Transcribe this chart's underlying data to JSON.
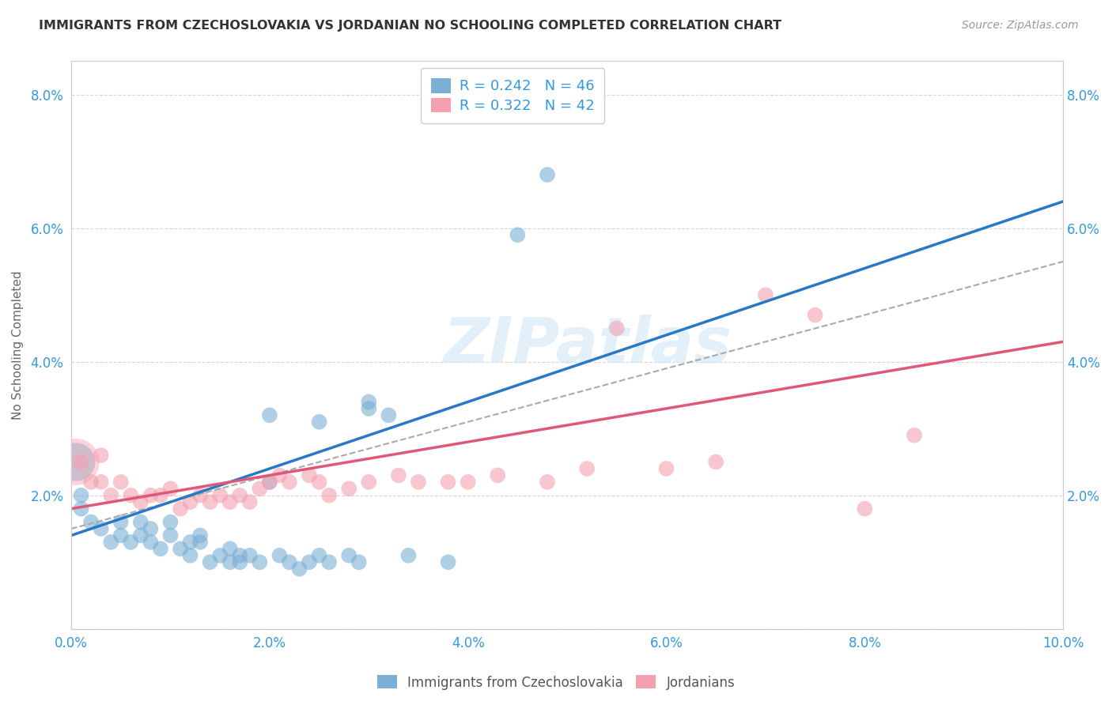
{
  "title": "IMMIGRANTS FROM CZECHOSLOVAKIA VS JORDANIAN NO SCHOOLING COMPLETED CORRELATION CHART",
  "source": "Source: ZipAtlas.com",
  "ylabel": "No Schooling Completed",
  "xlim": [
    0.0,
    0.1
  ],
  "ylim": [
    0.0,
    0.085
  ],
  "xticks": [
    0.0,
    0.02,
    0.04,
    0.06,
    0.08,
    0.1
  ],
  "yticks": [
    0.0,
    0.02,
    0.04,
    0.06,
    0.08
  ],
  "xticklabels": [
    "0.0%",
    "2.0%",
    "4.0%",
    "6.0%",
    "8.0%",
    "10.0%"
  ],
  "yticklabels": [
    "",
    "2.0%",
    "4.0%",
    "6.0%",
    "8.0%"
  ],
  "right_yticklabels": [
    "",
    "2.0%",
    "4.0%",
    "6.0%",
    "8.0%"
  ],
  "blue_color": "#7bafd4",
  "pink_color": "#f4a0b0",
  "blue_line_color": "#2878c8",
  "pink_line_color": "#e05878",
  "dashed_line_color": "#aaaaaa",
  "watermark": "ZIPatlas",
  "blue_scatter_x": [
    0.001,
    0.001,
    0.002,
    0.003,
    0.004,
    0.005,
    0.005,
    0.006,
    0.007,
    0.007,
    0.008,
    0.008,
    0.009,
    0.01,
    0.01,
    0.011,
    0.012,
    0.012,
    0.013,
    0.013,
    0.014,
    0.015,
    0.016,
    0.016,
    0.017,
    0.017,
    0.018,
    0.019,
    0.02,
    0.021,
    0.022,
    0.023,
    0.024,
    0.025,
    0.026,
    0.028,
    0.029,
    0.03,
    0.032,
    0.034,
    0.02,
    0.025,
    0.03,
    0.038,
    0.045,
    0.048
  ],
  "blue_scatter_y": [
    0.02,
    0.018,
    0.016,
    0.015,
    0.013,
    0.014,
    0.016,
    0.013,
    0.014,
    0.016,
    0.013,
    0.015,
    0.012,
    0.014,
    0.016,
    0.012,
    0.013,
    0.011,
    0.014,
    0.013,
    0.01,
    0.011,
    0.012,
    0.01,
    0.011,
    0.01,
    0.011,
    0.01,
    0.022,
    0.011,
    0.01,
    0.009,
    0.01,
    0.011,
    0.01,
    0.011,
    0.01,
    0.034,
    0.032,
    0.011,
    0.032,
    0.031,
    0.033,
    0.01,
    0.059,
    0.068
  ],
  "pink_scatter_x": [
    0.001,
    0.002,
    0.003,
    0.003,
    0.004,
    0.005,
    0.006,
    0.007,
    0.008,
    0.009,
    0.01,
    0.011,
    0.012,
    0.013,
    0.014,
    0.015,
    0.016,
    0.017,
    0.018,
    0.019,
    0.02,
    0.021,
    0.022,
    0.024,
    0.025,
    0.026,
    0.028,
    0.03,
    0.033,
    0.035,
    0.038,
    0.04,
    0.043,
    0.048,
    0.052,
    0.055,
    0.06,
    0.065,
    0.07,
    0.075,
    0.08,
    0.085
  ],
  "pink_scatter_y": [
    0.025,
    0.022,
    0.022,
    0.026,
    0.02,
    0.022,
    0.02,
    0.019,
    0.02,
    0.02,
    0.021,
    0.018,
    0.019,
    0.02,
    0.019,
    0.02,
    0.019,
    0.02,
    0.019,
    0.021,
    0.022,
    0.023,
    0.022,
    0.023,
    0.022,
    0.02,
    0.021,
    0.022,
    0.023,
    0.022,
    0.022,
    0.022,
    0.023,
    0.022,
    0.024,
    0.045,
    0.024,
    0.025,
    0.05,
    0.047,
    0.018,
    0.029
  ],
  "blue_bubble_x": [
    0.0005
  ],
  "blue_bubble_y": [
    0.025
  ],
  "blue_bubble_s": [
    1200
  ],
  "pink_bubble_x": [
    0.0005
  ],
  "pink_bubble_y": [
    0.025
  ],
  "pink_bubble_s": [
    1800
  ]
}
